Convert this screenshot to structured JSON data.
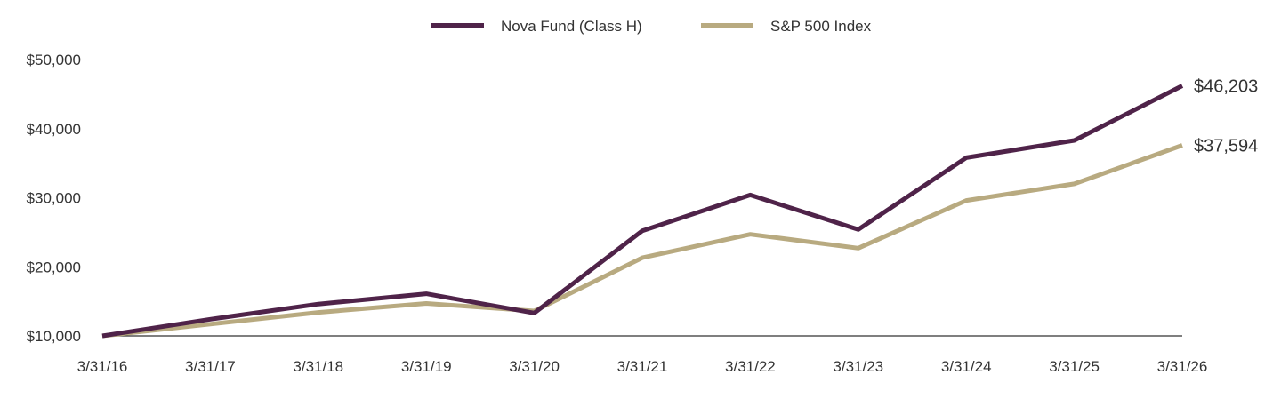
{
  "chart_data": {
    "type": "line",
    "title": "",
    "xlabel": "",
    "ylabel": "",
    "categories": [
      "3/31/16",
      "3/31/17",
      "3/31/18",
      "3/31/19",
      "3/31/20",
      "3/31/21",
      "3/31/22",
      "3/31/23",
      "3/31/24",
      "3/31/25",
      "3/31/26"
    ],
    "series": [
      {
        "name": "Nova Fund (Class H)",
        "color": "#4f2349",
        "values": [
          10000,
          12400,
          14600,
          16100,
          13300,
          25200,
          30400,
          25400,
          35800,
          38300,
          46203
        ],
        "end_label": "$46,203"
      },
      {
        "name": "S&P 500 Index",
        "color": "#b8aa80",
        "values": [
          10000,
          11700,
          13400,
          14700,
          13600,
          21300,
          24700,
          22700,
          29600,
          32000,
          37594
        ],
        "end_label": "$37,594"
      }
    ],
    "y_ticks": [
      10000,
      20000,
      30000,
      40000,
      50000
    ],
    "y_tick_labels": [
      "$10,000",
      "$20,000",
      "$30,000",
      "$40,000",
      "$50,000"
    ],
    "ylim": [
      10000,
      50000
    ],
    "grid": false,
    "legend_position": "top-center"
  }
}
